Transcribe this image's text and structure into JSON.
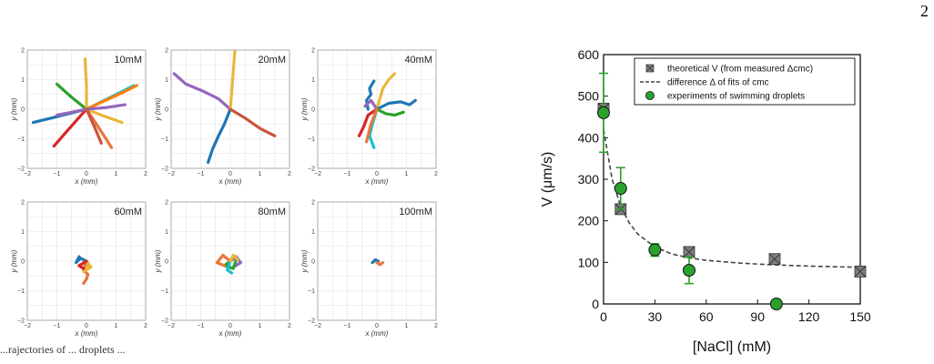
{
  "page": {
    "number": "2",
    "caption_fragment": "...rajectories of ... droplets ..."
  },
  "colors": {
    "series": [
      "#1f77b4",
      "#ff7f0e",
      "#2ca02c",
      "#d62728",
      "#9467bd",
      "#8c564b",
      "#e377c2",
      "#7f7f7f",
      "#bcbd22",
      "#17becf"
    ]
  },
  "chart_data": [
    {
      "type": "scatter",
      "panel": "trajectories",
      "title": "10mM",
      "xlabel": "x (mm)",
      "ylabel": "y (mm)",
      "xlim": [
        -2,
        2
      ],
      "ylim": [
        -2,
        2
      ],
      "xticks": [
        "−2",
        "−1",
        "0",
        "1",
        "2"
      ],
      "yticks": [
        "−2",
        "−1",
        "0",
        "1",
        "2"
      ],
      "grid": true,
      "series": [
        {
          "color": "#1f77b4",
          "x": [
            0,
            -0.6,
            -1.2,
            -1.8
          ],
          "y": [
            0,
            -0.15,
            -0.3,
            -0.45
          ]
        },
        {
          "color": "#2ca02c",
          "x": [
            0,
            -0.5,
            -1.0
          ],
          "y": [
            0,
            0.4,
            0.85
          ]
        },
        {
          "color": "#d62728",
          "x": [
            0,
            -0.4,
            -0.8,
            -1.1
          ],
          "y": [
            0,
            -0.45,
            -0.9,
            -1.25
          ]
        },
        {
          "color": "#e8b83c",
          "x": [
            0,
            0.0,
            -0.05
          ],
          "y": [
            0,
            0.8,
            1.7
          ]
        },
        {
          "color": "#17becf",
          "x": [
            0,
            0.5,
            1.0,
            1.6
          ],
          "y": [
            0,
            0.25,
            0.5,
            0.8
          ]
        },
        {
          "color": "#ff7f0e",
          "x": [
            0,
            0.6,
            1.2,
            1.7
          ],
          "y": [
            0,
            0.28,
            0.55,
            0.8
          ]
        },
        {
          "color": "#e8b83c",
          "x": [
            0,
            0.5,
            1.2
          ],
          "y": [
            0,
            -0.2,
            -0.45
          ]
        },
        {
          "color": "#e8763c",
          "x": [
            0,
            0.4,
            0.85
          ],
          "y": [
            0,
            -0.6,
            -1.3
          ]
        },
        {
          "color": "#9467bd",
          "x": [
            0,
            0.6,
            1.3
          ],
          "y": [
            0,
            0.05,
            0.15
          ]
        },
        {
          "color": "#9467bd",
          "x": [
            0,
            -0.5,
            -1.0
          ],
          "y": [
            0,
            -0.1,
            -0.2
          ]
        },
        {
          "color": "#c9543a",
          "x": [
            0,
            0.25,
            0.5
          ],
          "y": [
            0,
            -0.55,
            -1.15
          ]
        }
      ]
    },
    {
      "type": "scatter",
      "panel": "trajectories",
      "title": "20mM",
      "xlabel": "x (mm)",
      "ylabel": "y (mm)",
      "xlim": [
        -2,
        2
      ],
      "ylim": [
        -2,
        2
      ],
      "xticks": [
        "−2",
        "−1",
        "0",
        "1",
        "2"
      ],
      "yticks": [
        "−2",
        "−1",
        "0",
        "1",
        "2"
      ],
      "grid": true,
      "series": [
        {
          "color": "#9467bd",
          "x": [
            -1.9,
            -1.5,
            -0.9,
            -0.4,
            0
          ],
          "y": [
            1.2,
            0.85,
            0.6,
            0.35,
            0
          ]
        },
        {
          "color": "#e8b83c",
          "x": [
            0,
            0.05,
            0.1,
            0.15
          ],
          "y": [
            0,
            0.6,
            1.3,
            1.95
          ]
        },
        {
          "color": "#1f77b4",
          "x": [
            0,
            -0.2,
            -0.4,
            -0.6,
            -0.75
          ],
          "y": [
            0,
            -0.5,
            -0.9,
            -1.35,
            -1.8
          ]
        },
        {
          "color": "#c9543a",
          "x": [
            0,
            0.5,
            1.0,
            1.5
          ],
          "y": [
            0,
            -0.3,
            -0.65,
            -0.9
          ]
        }
      ]
    },
    {
      "type": "scatter",
      "panel": "trajectories",
      "title": "40mM",
      "xlabel": "x (mm)",
      "ylabel": "y (mm)",
      "xlim": [
        -2,
        2
      ],
      "ylim": [
        -2,
        2
      ],
      "xticks": [
        "−2",
        "−1",
        "0",
        "1",
        "2"
      ],
      "yticks": [
        "−2",
        "−1",
        "0",
        "1",
        "2"
      ],
      "grid": true,
      "series": [
        {
          "color": "#1f77b4",
          "x": [
            -0.3,
            -0.35,
            -0.2,
            -0.25,
            -0.1
          ],
          "y": [
            0,
            0.3,
            0.5,
            0.7,
            0.95
          ]
        },
        {
          "color": "#e8b83c",
          "x": [
            0,
            0.1,
            0.2,
            0.4,
            0.6
          ],
          "y": [
            0,
            0.35,
            0.7,
            1.0,
            1.2
          ]
        },
        {
          "color": "#1f77b4",
          "x": [
            0,
            0.4,
            0.8,
            1.1,
            1.3
          ],
          "y": [
            0,
            0.2,
            0.25,
            0.15,
            0.3
          ]
        },
        {
          "color": "#2ca02c",
          "x": [
            0,
            0.3,
            0.6,
            0.9
          ],
          "y": [
            0,
            -0.15,
            -0.2,
            -0.1
          ]
        },
        {
          "color": "#d62728",
          "x": [
            0,
            -0.3,
            -0.45,
            -0.6
          ],
          "y": [
            0,
            -0.2,
            -0.6,
            -0.9
          ]
        },
        {
          "color": "#17becf",
          "x": [
            0,
            -0.15,
            -0.25,
            -0.1
          ],
          "y": [
            0,
            -0.5,
            -0.9,
            -1.3
          ]
        },
        {
          "color": "#9467bd",
          "x": [
            0,
            -0.2,
            -0.4
          ],
          "y": [
            0,
            0.3,
            0.1
          ]
        },
        {
          "color": "#e8763c",
          "x": [
            0,
            -0.2,
            -0.35
          ],
          "y": [
            0,
            -0.5,
            -1.1
          ]
        }
      ]
    },
    {
      "type": "scatter",
      "panel": "trajectories",
      "title": "60mM",
      "xlabel": "x (mm)",
      "ylabel": "y (mm)",
      "xlim": [
        -2,
        2
      ],
      "ylim": [
        -2,
        2
      ],
      "xticks": [
        "−2",
        "−1",
        "0",
        "1",
        "2"
      ],
      "yticks": [
        "−2",
        "−1",
        "0",
        "1",
        "2"
      ],
      "grid": true,
      "series": [
        {
          "color": "#e8763c",
          "x": [
            0,
            -0.1,
            0.05,
            0.0,
            -0.1
          ],
          "y": [
            0,
            -0.3,
            -0.45,
            -0.6,
            -0.75
          ]
        },
        {
          "color": "#1f77b4",
          "x": [
            0,
            -0.2,
            -0.35,
            -0.25
          ],
          "y": [
            0,
            0.1,
            -0.05,
            0.15
          ]
        },
        {
          "color": "#e8b83c",
          "x": [
            0,
            0.15,
            -0.1,
            0.05
          ],
          "y": [
            0,
            -0.2,
            -0.35,
            -0.15
          ]
        },
        {
          "color": "#d62728",
          "x": [
            0,
            -0.25,
            -0.1
          ],
          "y": [
            0,
            -0.15,
            -0.25
          ]
        }
      ]
    },
    {
      "type": "scatter",
      "panel": "trajectories",
      "title": "80mM",
      "xlabel": "x (mm)",
      "ylabel": "y (mm)",
      "xlim": [
        -2,
        2
      ],
      "ylim": [
        -2,
        2
      ],
      "xticks": [
        "−2",
        "−1",
        "0",
        "1",
        "2"
      ],
      "yticks": [
        "−2",
        "−1",
        "0",
        "1",
        "2"
      ],
      "grid": true,
      "series": [
        {
          "color": "#9467bd",
          "x": [
            0,
            0.2,
            0.35,
            0.1
          ],
          "y": [
            0,
            0.15,
            -0.05,
            -0.2
          ]
        },
        {
          "color": "#2ca02c",
          "x": [
            0,
            -0.2,
            0.1,
            0.2
          ],
          "y": [
            0,
            -0.15,
            -0.25,
            0.05
          ]
        },
        {
          "color": "#e8763c",
          "x": [
            0,
            -0.25,
            -0.45,
            -0.2
          ],
          "y": [
            0,
            0.2,
            -0.05,
            -0.15
          ]
        },
        {
          "color": "#17becf",
          "x": [
            0,
            -0.1,
            0.05
          ],
          "y": [
            0,
            -0.3,
            -0.4
          ]
        },
        {
          "color": "#e8b83c",
          "x": [
            0,
            0.1,
            0.25
          ],
          "y": [
            0,
            0.2,
            0.05
          ]
        }
      ]
    },
    {
      "type": "scatter",
      "panel": "trajectories",
      "title": "100mM",
      "xlabel": "x (mm)",
      "ylabel": "y (mm)",
      "xlim": [
        -2,
        2
      ],
      "ylim": [
        -2,
        2
      ],
      "xticks": [
        "−2",
        "−1",
        "0",
        "1",
        "2"
      ],
      "yticks": [
        "−2",
        "−1",
        "0",
        "1",
        "2"
      ],
      "grid": true,
      "series": [
        {
          "color": "#1f77b4",
          "x": [
            -0.15,
            -0.05,
            0.05
          ],
          "y": [
            -0.05,
            0.05,
            0.0
          ]
        },
        {
          "color": "#e8763c",
          "x": [
            0.0,
            0.1,
            0.2
          ],
          "y": [
            -0.05,
            -0.12,
            -0.05
          ]
        }
      ]
    },
    {
      "type": "scatter",
      "panel": "velocity",
      "xlabel": "[NaCl] (mM)",
      "ylabel": "V (μm/s)",
      "xlim": [
        0,
        150
      ],
      "ylim": [
        0,
        600
      ],
      "xticks": [
        0,
        30,
        60,
        90,
        120,
        150
      ],
      "yticks": [
        0,
        100,
        200,
        300,
        400,
        500,
        600
      ],
      "grid": false,
      "legend_position": "top-right",
      "series": [
        {
          "name": "theoretical V (from measured Δcmc)",
          "marker": "square-x",
          "color": "#7f7f7f",
          "x": [
            0,
            10,
            50,
            100,
            150
          ],
          "y": [
            470,
            228,
            125,
            108,
            78
          ]
        },
        {
          "name": "difference Δ of fits of cmc",
          "line_style": "dashed",
          "color": "#444444",
          "x": [
            0,
            5,
            10,
            15,
            20,
            30,
            40,
            50,
            60,
            80,
            100,
            120,
            150
          ],
          "y": [
            420,
            300,
            235,
            195,
            168,
            137,
            120,
            111,
            105,
            98,
            94,
            91,
            88
          ]
        },
        {
          "name": "experiments of swimming droplets",
          "marker": "circle",
          "color": "#2ca02c",
          "x": [
            0,
            10,
            30,
            50,
            101
          ],
          "y": [
            460,
            278,
            130,
            81,
            0
          ],
          "err": [
            95,
            50,
            15,
            32,
            0
          ]
        }
      ]
    }
  ]
}
